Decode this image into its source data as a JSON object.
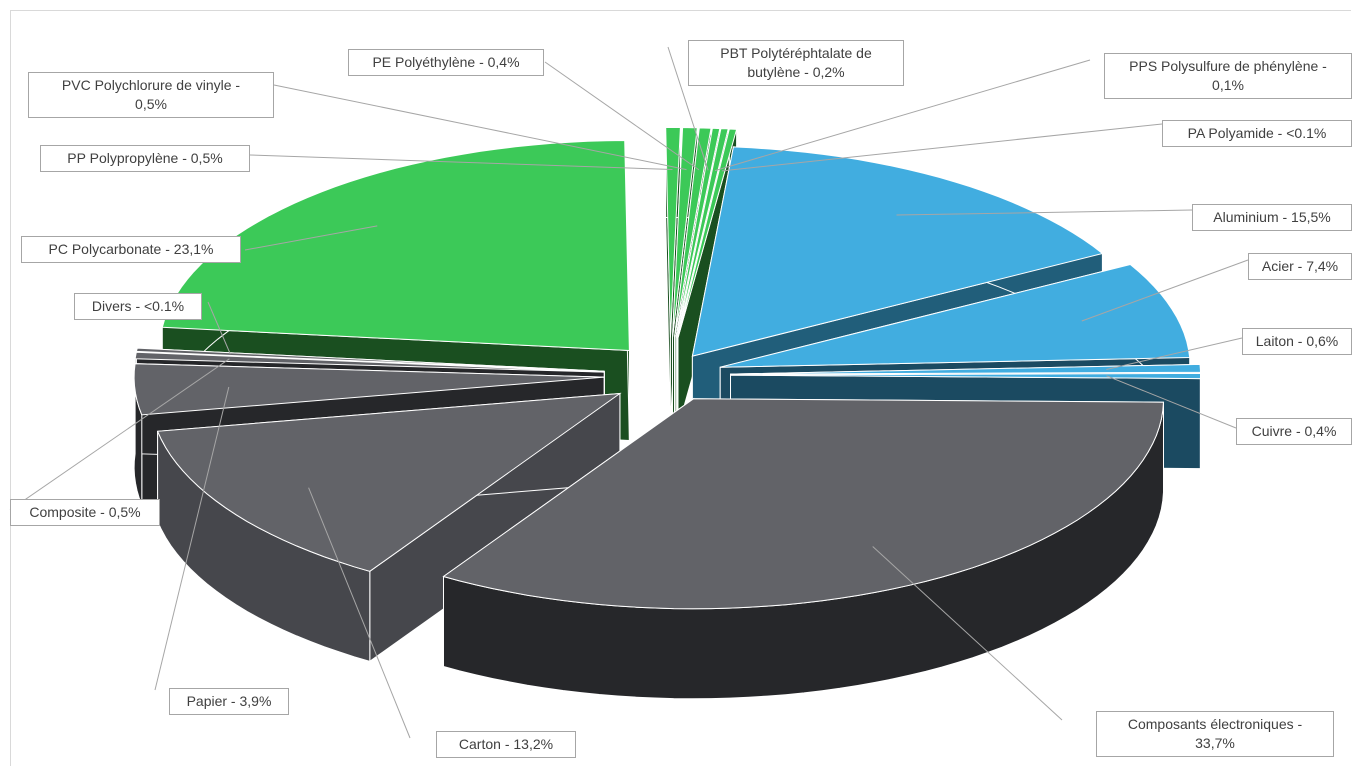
{
  "chart_data": {
    "type": "pie",
    "style": "3d-exploded",
    "legend": "none",
    "slices": [
      {
        "name": "Aluminium",
        "value": 15.5,
        "label": "Aluminium - 15,5%",
        "top_color": "#41ade0",
        "side_color": "#215e7a"
      },
      {
        "name": "Acier",
        "value": 7.4,
        "label": "Acier - 7,4%",
        "top_color": "#41ade0",
        "side_color": "#1b4a61"
      },
      {
        "name": "Laiton",
        "value": 0.6,
        "label": "Laiton - 0,6%",
        "top_color": "#41ade0",
        "side_color": "#1b4a61"
      },
      {
        "name": "Cuivre",
        "value": 0.4,
        "label": "Cuivre - 0,4%",
        "top_color": "#41ade0",
        "side_color": "#1b4a61"
      },
      {
        "name": "Composants électroniques",
        "value": 33.7,
        "label": "Composants électroniques - 33,7%",
        "top_color": "#626368",
        "side_color": "#26272a"
      },
      {
        "name": "Carton",
        "value": 13.2,
        "label": "Carton - 13,2%",
        "top_color": "#626368",
        "side_color": "#46474c"
      },
      {
        "name": "Papier",
        "value": 3.9,
        "label": "Papier - 3,9%",
        "top_color": "#626368",
        "side_color": "#26272a"
      },
      {
        "name": "Composite",
        "value": 0.5,
        "label": "Composite - 0,5%",
        "top_color": "#626368",
        "side_color": "#26272a"
      },
      {
        "name": "Divers",
        "value": 0.05,
        "label": "Divers - <0.1%",
        "top_color": "#626368",
        "side_color": "#26272a"
      },
      {
        "name": "PC Polycarbonate",
        "value": 23.1,
        "label": "PC Polycarbonate - 23,1%",
        "top_color": "#3cc958",
        "side_color": "#1a4f20"
      },
      {
        "name": "PP Polypropylène",
        "value": 0.5,
        "label": "PP Polypropylène - 0,5%",
        "top_color": "#3cc958",
        "side_color": "#1a4f20"
      },
      {
        "name": "PVC Polychlorure de vinyle",
        "value": 0.5,
        "label": "PVC Polychlorure de vinyle - 0,5%",
        "top_color": "#3cc958",
        "side_color": "#1a4f20"
      },
      {
        "name": "PE Polyéthylène",
        "value": 0.4,
        "label": "PE Polyéthylène - 0,4%",
        "top_color": "#3cc958",
        "side_color": "#1a4f20"
      },
      {
        "name": "PBT Polytéréphtalate de butylène",
        "value": 0.2,
        "label": "PBT Polytéréphtalate de butylène - 0,2%",
        "top_color": "#3cc958",
        "side_color": "#1a4f20"
      },
      {
        "name": "PPS Polysulfure de phénylène",
        "value": 0.1,
        "label": "PPS Polysulfure de phénylène - 0,1%",
        "top_color": "#3cc958",
        "side_color": "#1a4f20"
      },
      {
        "name": "PA Polyamide",
        "value": 0.05,
        "label": "PA Polyamide - <0.1%",
        "top_color": "#3cc958",
        "side_color": "#1a4f20"
      }
    ]
  },
  "labels": {
    "aluminium": "Aluminium - 15,5%",
    "acier": "Acier - 7,4%",
    "laiton": "Laiton - 0,6%",
    "cuivre": "Cuivre - 0,4%",
    "composants_line1": "Composants électroniques -",
    "composants_line2": "33,7%",
    "carton": "Carton - 13,2%",
    "papier": "Papier - 3,9%",
    "composite": "Composite - 0,5%",
    "divers": "Divers - <0.1%",
    "pc": "PC Polycarbonate - 23,1%",
    "pp": "PP Polypropylène - 0,5%",
    "pvc_line1": "PVC Polychlorure de vinyle -",
    "pvc_line2": "0,5%",
    "pe": "PE Polyéthylène - 0,4%",
    "pbt_line1": "PBT Polytéréphtalate de",
    "pbt_line2": "butylène - 0,2%",
    "pps_line1": "PPS Polysulfure de phénylène -",
    "pps_line2": "0,1%",
    "pa": "PA Polyamide - <0.1%"
  }
}
